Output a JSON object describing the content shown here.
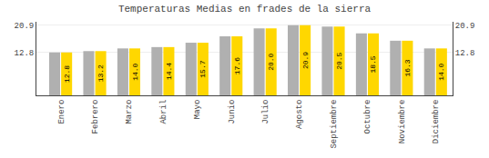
{
  "chart_data": {
    "type": "bar",
    "title": "Temperaturas Medias en frades de la sierra",
    "categories": [
      "Enero",
      "Febrero",
      "Marzo",
      "Abril",
      "Mayo",
      "Junio",
      "Julio",
      "Agosto",
      "Septiembre",
      "Octubre",
      "Noviembre",
      "Diciembre"
    ],
    "series": [
      {
        "color": "#B0B0B0",
        "values": [
          12.8,
          13.2,
          14.0,
          14.4,
          15.7,
          17.6,
          20.0,
          20.9,
          20.5,
          18.5,
          16.3,
          14.0
        ]
      },
      {
        "color": "#FFD700",
        "values": [
          12.8,
          13.2,
          14.0,
          14.4,
          15.7,
          17.6,
          20.0,
          20.9,
          20.5,
          18.5,
          16.3,
          14.0
        ],
        "value_labels": [
          "12.8",
          "13.2",
          "14.0",
          "14.4",
          "15.7",
          "17.6",
          "20.0",
          "20.9",
          "20.5",
          "18.5",
          "16.3",
          "14.0"
        ]
      }
    ],
    "ylim": [
      0,
      21.945
    ],
    "yticks": [
      12.8,
      20.9
    ],
    "grid": true,
    "data_labels": true
  }
}
